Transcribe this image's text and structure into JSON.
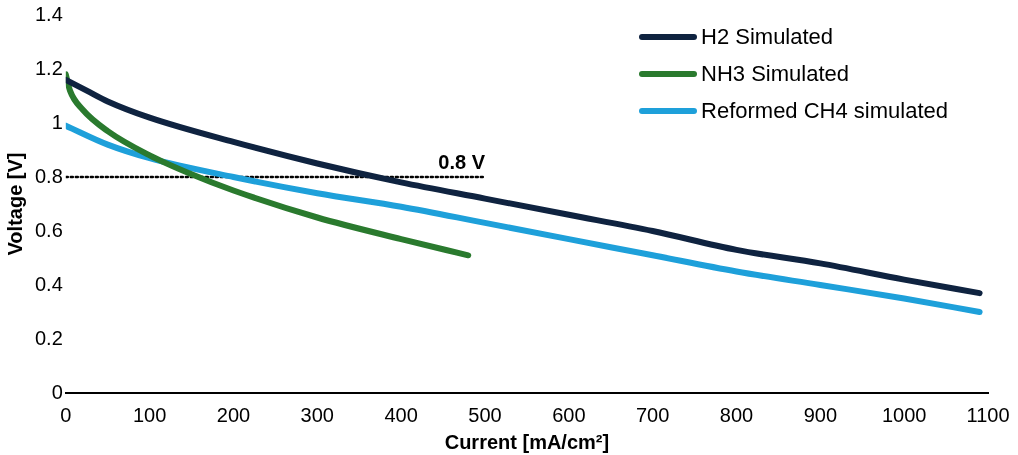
{
  "chart_data": {
    "type": "line",
    "xlabel": "Current [mA/cm²]",
    "ylabel": "Voltage [V]",
    "xlim": [
      0,
      1100
    ],
    "xticks": [
      0,
      100,
      200,
      300,
      400,
      500,
      600,
      700,
      800,
      900,
      1000,
      1100
    ],
    "ylim": [
      0,
      1.4
    ],
    "yticks": [
      0,
      0.2,
      0.4,
      0.6,
      0.8,
      1,
      1.2,
      1.4
    ],
    "grid": false,
    "legend": "top right",
    "marker": "none",
    "line_style": "solid",
    "series": [
      {
        "name": "H2 Simulated",
        "color": "#0f2340",
        "x": [
          0,
          25,
          50,
          100,
          200,
          300,
          400,
          500,
          600,
          700,
          800,
          900,
          1000,
          1090
        ],
        "values": [
          1.16,
          1.12,
          1.08,
          1.02,
          0.93,
          0.85,
          0.78,
          0.72,
          0.66,
          0.6,
          0.53,
          0.48,
          0.42,
          0.37
        ]
      },
      {
        "name": "NH3 Simulated",
        "color": "#2a7a2e",
        "x": [
          0,
          5,
          20,
          50,
          100,
          150,
          200,
          300,
          400,
          480
        ],
        "values": [
          1.18,
          1.12,
          1.05,
          0.97,
          0.88,
          0.81,
          0.75,
          0.65,
          0.57,
          0.51
        ]
      },
      {
        "name": "Reformed CH4 simulated",
        "color": "#1ea0da",
        "x": [
          0,
          50,
          100,
          200,
          300,
          400,
          500,
          600,
          700,
          800,
          900,
          1000,
          1090
        ],
        "values": [
          0.99,
          0.92,
          0.87,
          0.8,
          0.74,
          0.69,
          0.63,
          0.57,
          0.51,
          0.45,
          0.4,
          0.35,
          0.3
        ]
      },
      {
        "type": "line",
        "color": "#000000",
        "line_style": "dotted",
        "x": [
          0,
          500
        ],
        "values": [
          0.8,
          0.8
        ]
      }
    ],
    "annotations": [
      {
        "text": "0.8 V",
        "x": 500,
        "y": 0.8
      }
    ]
  }
}
